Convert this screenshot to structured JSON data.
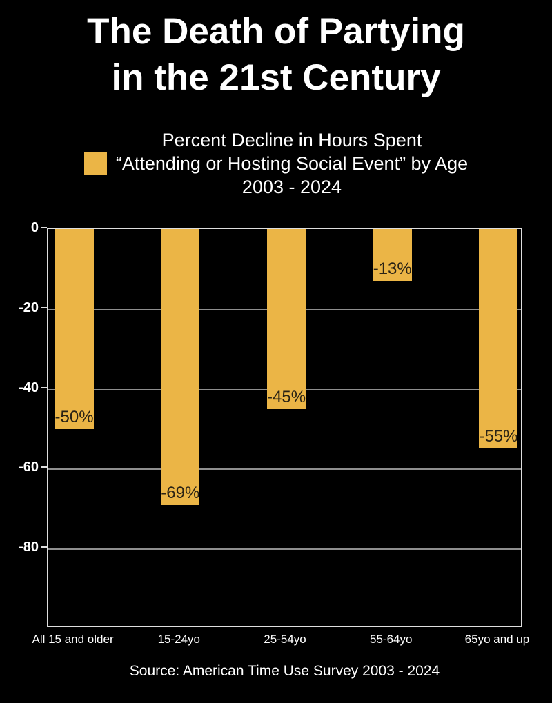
{
  "title": {
    "line1": "The Death of Partying",
    "line2": "in the 21st Century"
  },
  "legend": {
    "swatch_color": "#EBB546",
    "label_lines": [
      "Percent Decline in Hours Spent",
      "“Attending or Hosting Social Event” by Age",
      "2003 - 2024"
    ]
  },
  "source": "Source: American Time Use Survey 2003 - 2024",
  "colors": {
    "background": "#000000",
    "bar": "#EBB546",
    "gridline": "#8F8F8F",
    "spine": "#DEDEDE",
    "bar_label_text": "#2A2315",
    "text": "#FFFFFF"
  },
  "chart_data": {
    "type": "bar",
    "title": "The Death of Partying in the 21st Century",
    "legend_label": "Percent Decline in Hours Spent “Attending or Hosting Social Event” by Age 2003 - 2024",
    "categories": [
      "All 15 and older",
      "15-24yo",
      "25-54yo",
      "55-64yo",
      "65yo and up"
    ],
    "values": [
      -50,
      -69,
      -45,
      -13,
      -55
    ],
    "bar_labels": [
      "-50%",
      "-69%",
      "-45%",
      "-13%",
      "-55%"
    ],
    "xlabel": "",
    "ylabel": "",
    "ylim": [
      -100,
      0
    ],
    "yticks": [
      0,
      -20,
      -40,
      -60,
      -80
    ],
    "grid": true,
    "gridlines_behind_bars": true,
    "legend_position": "top-center",
    "bar_label_position": "inside-bottom",
    "source": "Source: American Time Use Survey 2003 - 2024"
  }
}
